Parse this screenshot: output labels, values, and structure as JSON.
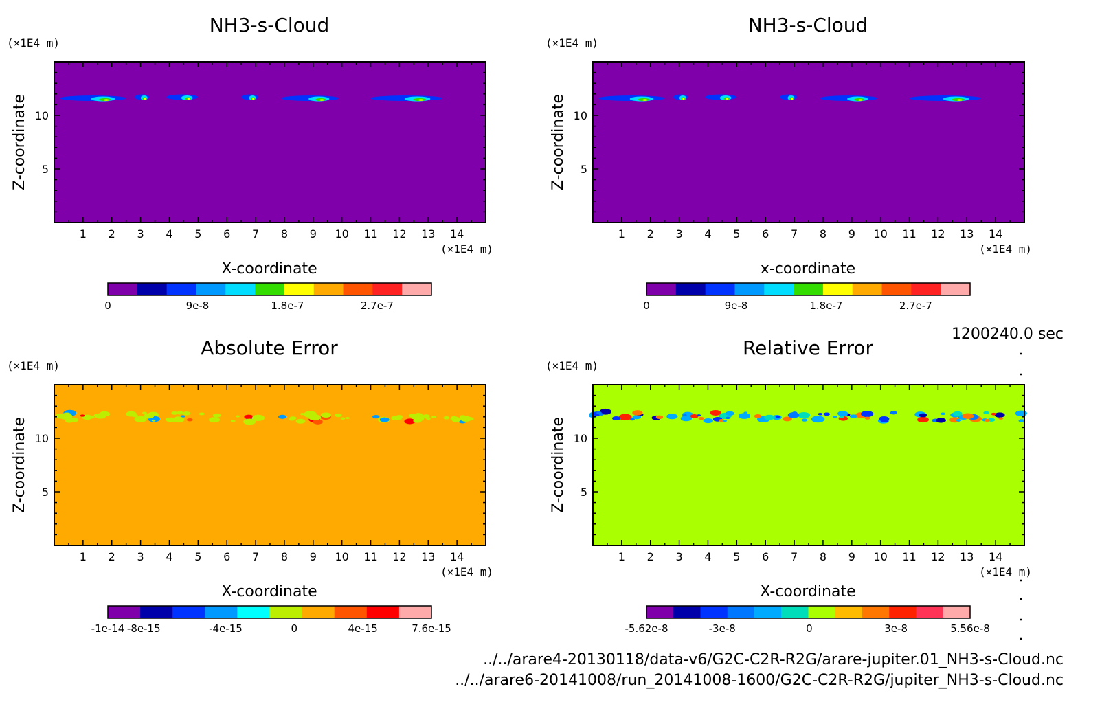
{
  "chart_data": [
    {
      "type": "heatmap",
      "title": "NH3-s-Cloud",
      "xlabel": "X-coordinate",
      "ylabel": "Z-coordinate",
      "x_unit": "(×1E4 m)",
      "y_unit": "(×1E4 m)",
      "xlim": [
        0,
        15
      ],
      "ylim": [
        0,
        15
      ],
      "xticks": [
        "1",
        "2",
        "3",
        "4",
        "5",
        "6",
        "7",
        "8",
        "9",
        "10",
        "11",
        "12",
        "13",
        "14"
      ],
      "yticks": [
        "5",
        "10"
      ],
      "background_color": "#7f00aa",
      "colorbar": {
        "colors": [
          "#7f00aa",
          "#0000aa",
          "#0033ff",
          "#0099ff",
          "#00ddff",
          "#33dd00",
          "#ffff00",
          "#ffaa00",
          "#ff5500",
          "#ff2222",
          "#ffaaaa"
        ],
        "labels": [
          "0",
          "9e-8",
          "1.8e-7",
          "2.7e-7"
        ],
        "label_positions": [
          0,
          0.277,
          0.555,
          0.832
        ]
      },
      "features": [
        {
          "x": [
            0.2,
            2.5
          ],
          "z": 11.6
        },
        {
          "x": [
            2.8,
            3.3
          ],
          "z": 11.7
        },
        {
          "x": [
            3.9,
            5.0
          ],
          "z": 11.7
        },
        {
          "x": [
            6.5,
            7.1
          ],
          "z": 11.7
        },
        {
          "x": [
            7.9,
            9.9
          ],
          "z": 11.6
        },
        {
          "x": [
            11.0,
            13.5
          ],
          "z": 11.6
        }
      ]
    },
    {
      "type": "heatmap",
      "title": "NH3-s-Cloud",
      "xlabel": "x-coordinate",
      "ylabel": "Z-coordinate",
      "x_unit": "(×1E4 m)",
      "y_unit": "(×1E4 m)",
      "xlim": [
        0,
        15
      ],
      "ylim": [
        0,
        15
      ],
      "xticks": [
        "1",
        "2",
        "3",
        "4",
        "5",
        "6",
        "7",
        "8",
        "9",
        "10",
        "11",
        "12",
        "13",
        "14"
      ],
      "yticks": [
        "5",
        "10"
      ],
      "background_color": "#7f00aa",
      "colorbar": {
        "colors": [
          "#7f00aa",
          "#0000aa",
          "#0033ff",
          "#0099ff",
          "#00ddff",
          "#33dd00",
          "#ffff00",
          "#ffaa00",
          "#ff5500",
          "#ff2222",
          "#ffaaaa"
        ],
        "labels": [
          "0",
          "9e-8",
          "1.8e-7",
          "2.7e-7"
        ],
        "label_positions": [
          0,
          0.277,
          0.555,
          0.832
        ]
      },
      "features": [
        {
          "x": [
            0.2,
            2.5
          ],
          "z": 11.6
        },
        {
          "x": [
            2.8,
            3.3
          ],
          "z": 11.7
        },
        {
          "x": [
            3.9,
            5.0
          ],
          "z": 11.7
        },
        {
          "x": [
            6.5,
            7.1
          ],
          "z": 11.7
        },
        {
          "x": [
            7.9,
            9.9
          ],
          "z": 11.6
        },
        {
          "x": [
            11.0,
            13.5
          ],
          "z": 11.6
        }
      ]
    },
    {
      "type": "heatmap",
      "title": "Absolute Error",
      "xlabel": "X-coordinate",
      "ylabel": "Z-coordinate",
      "x_unit": "(×1E4 m)",
      "y_unit": "(×1E4 m)",
      "xlim": [
        0,
        15
      ],
      "ylim": [
        0,
        15
      ],
      "xticks": [
        "1",
        "2",
        "3",
        "4",
        "5",
        "6",
        "7",
        "8",
        "9",
        "10",
        "11",
        "12",
        "13",
        "14"
      ],
      "yticks": [
        "5",
        "10"
      ],
      "background_color": "#ffaa00",
      "colorbar": {
        "colors": [
          "#7f00aa",
          "#0000aa",
          "#0033ff",
          "#0099ff",
          "#00ffff",
          "#bbee00",
          "#ffaa00",
          "#ff5500",
          "#ff0000",
          "#ffaaaa"
        ],
        "labels": [
          "-1e-14",
          "-8e-15",
          "-4e-15",
          "0",
          "4e-15",
          "7.6e-15"
        ],
        "label_positions": [
          0,
          0.111,
          0.364,
          0.576,
          0.788,
          1.0
        ]
      },
      "features": [
        {
          "x": [
            0.1,
            2.6
          ],
          "z": 12.0
        },
        {
          "x": [
            2.6,
            5.8
          ],
          "z": 12.0
        },
        {
          "x": [
            6.1,
            7.6
          ],
          "z": 11.9
        },
        {
          "x": [
            7.8,
            10.3
          ],
          "z": 11.9
        },
        {
          "x": [
            11.0,
            14.6
          ],
          "z": 11.9
        }
      ]
    },
    {
      "type": "heatmap",
      "title": "Relative Error",
      "xlabel": "X-coordinate",
      "ylabel": "Z-coordinate",
      "x_unit": "(×1E4 m)",
      "y_unit": "(×1E4 m)",
      "xlim": [
        0,
        15
      ],
      "ylim": [
        0,
        15
      ],
      "xticks": [
        "1",
        "2",
        "3",
        "4",
        "5",
        "6",
        "7",
        "8",
        "9",
        "10",
        "11",
        "12",
        "13",
        "14"
      ],
      "yticks": [
        "5",
        "10"
      ],
      "background_color": "#aaff00",
      "colorbar": {
        "colors": [
          "#7f00aa",
          "#0000aa",
          "#0033ff",
          "#0077ff",
          "#00aaff",
          "#00ddbb",
          "#aaff00",
          "#ffbb00",
          "#ff7700",
          "#ff2200",
          "#ff3355",
          "#ffaaaa"
        ],
        "labels": [
          "-5.62e-8",
          "-3e-8",
          "0",
          "3e-8",
          "5.56e-8"
        ],
        "label_positions": [
          0,
          0.234,
          0.503,
          0.771,
          1.0
        ]
      },
      "features": [
        {
          "x": [
            0.0,
            2.6
          ],
          "z": 12.1
        },
        {
          "x": [
            2.6,
            4.1
          ],
          "z": 12.0
        },
        {
          "x": [
            4.0,
            6.0
          ],
          "z": 12.0
        },
        {
          "x": [
            6.1,
            7.4
          ],
          "z": 12.0
        },
        {
          "x": [
            7.7,
            10.6
          ],
          "z": 12.0
        },
        {
          "x": [
            11.0,
            15.0
          ],
          "z": 12.0
        }
      ]
    }
  ],
  "info": {
    "time": "1200240.0 sec",
    "file1": "../../arare4-20130118/data-v6/G2C-C2R-R2G/arare-jupiter.01_NH3-s-Cloud.nc",
    "file2": "../../arare6-20141008/run_20141008-1600/G2C-C2R-R2G/jupiter_NH3-s-Cloud.nc"
  }
}
